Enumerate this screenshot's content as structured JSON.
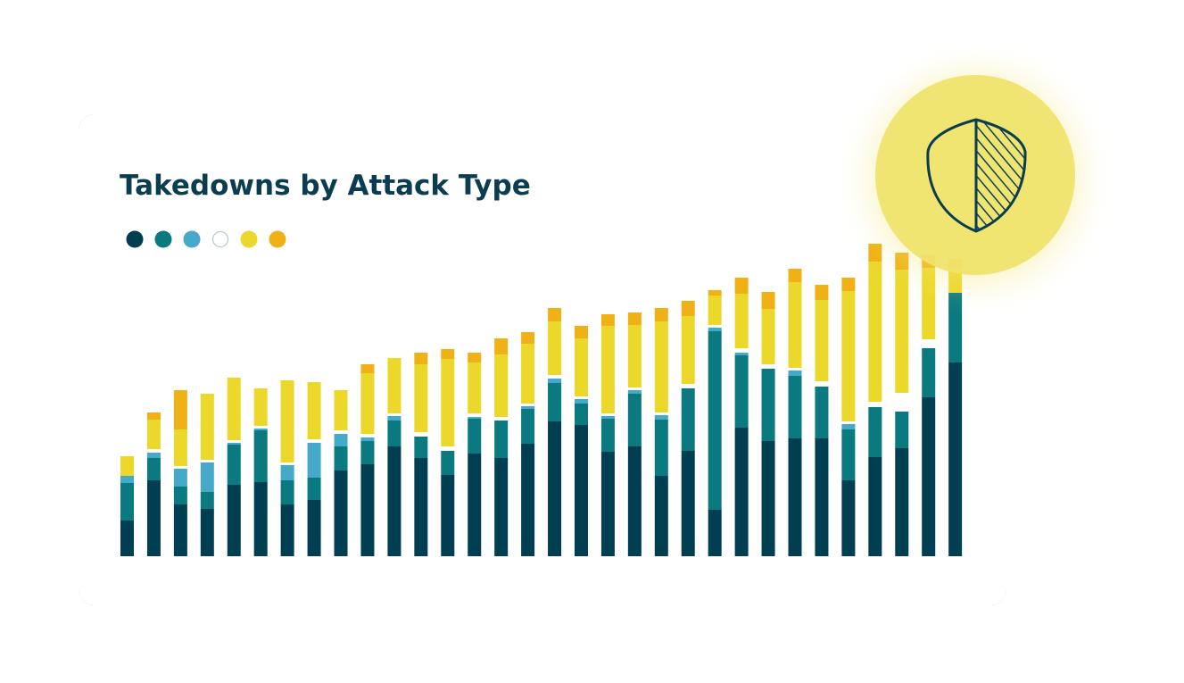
{
  "chart_data": {
    "type": "stacked-bar",
    "title": "Takedowns by Attack Type",
    "ylim": [
      0,
      350
    ],
    "series": [
      {
        "color": "#003f52",
        "values": [
          40,
          85,
          58,
          53,
          80,
          83,
          58,
          63,
          96,
          103,
          123,
          110,
          91,
          115,
          110,
          126,
          151,
          147,
          117,
          123,
          90,
          118,
          52,
          144,
          129,
          132,
          132,
          85,
          111,
          121,
          178,
          217
        ]
      },
      {
        "color": "#0a7a80",
        "values": [
          42,
          25,
          20,
          19,
          45,
          58,
          27,
          25,
          27,
          26,
          29,
          24,
          27,
          39,
          42,
          39,
          43,
          24,
          37,
          59,
          63,
          70,
          200,
          81,
          81,
          70,
          58,
          57,
          56,
          41,
          55,
          78
        ]
      },
      {
        "color": "#46a9c9",
        "values": [
          8,
          6,
          20,
          33,
          2,
          2,
          17,
          39,
          14,
          4,
          5,
          0,
          0,
          2,
          0,
          3,
          5,
          5,
          3,
          4,
          5,
          0,
          4,
          3,
          0,
          6,
          0,
          6,
          0,
          0,
          0,
          0
        ]
      },
      {
        "color": "#ffffff",
        "values": [
          0,
          4,
          3,
          3,
          3,
          3,
          3,
          4,
          4,
          4,
          3,
          5,
          5,
          4,
          4,
          3,
          4,
          3,
          3,
          3,
          3,
          5,
          3,
          5,
          5,
          3,
          6,
          3,
          6,
          21,
          10,
          0
        ]
      },
      {
        "color": "#ecd82a",
        "values": [
          22,
          33,
          41,
          74,
          70,
          42,
          92,
          64,
          45,
          68,
          62,
          76,
          98,
          57,
          70,
          67,
          60,
          65,
          98,
          70,
          102,
          76,
          33,
          61,
          62,
          96,
          91,
          146,
          157,
          138,
          80,
          28
        ]
      },
      {
        "color": "#f0b117",
        "values": [
          0,
          8,
          44,
          0,
          0,
          0,
          0,
          0,
          0,
          10,
          0,
          13,
          11,
          11,
          18,
          13,
          15,
          14,
          13,
          14,
          15,
          17,
          6,
          18,
          19,
          15,
          17,
          15,
          20,
          19,
          15,
          10
        ]
      }
    ]
  }
}
